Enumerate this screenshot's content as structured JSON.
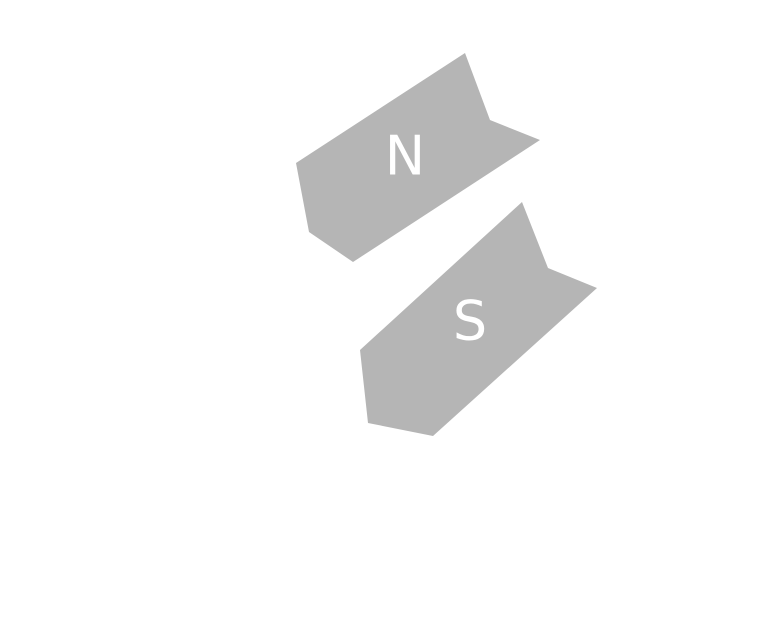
{
  "diagram": {
    "pieces": [
      {
        "label": "N",
        "color": "#b5b5b5"
      },
      {
        "label": "S",
        "color": "#b5b5b5"
      }
    ],
    "label_color": "#ffffff"
  }
}
